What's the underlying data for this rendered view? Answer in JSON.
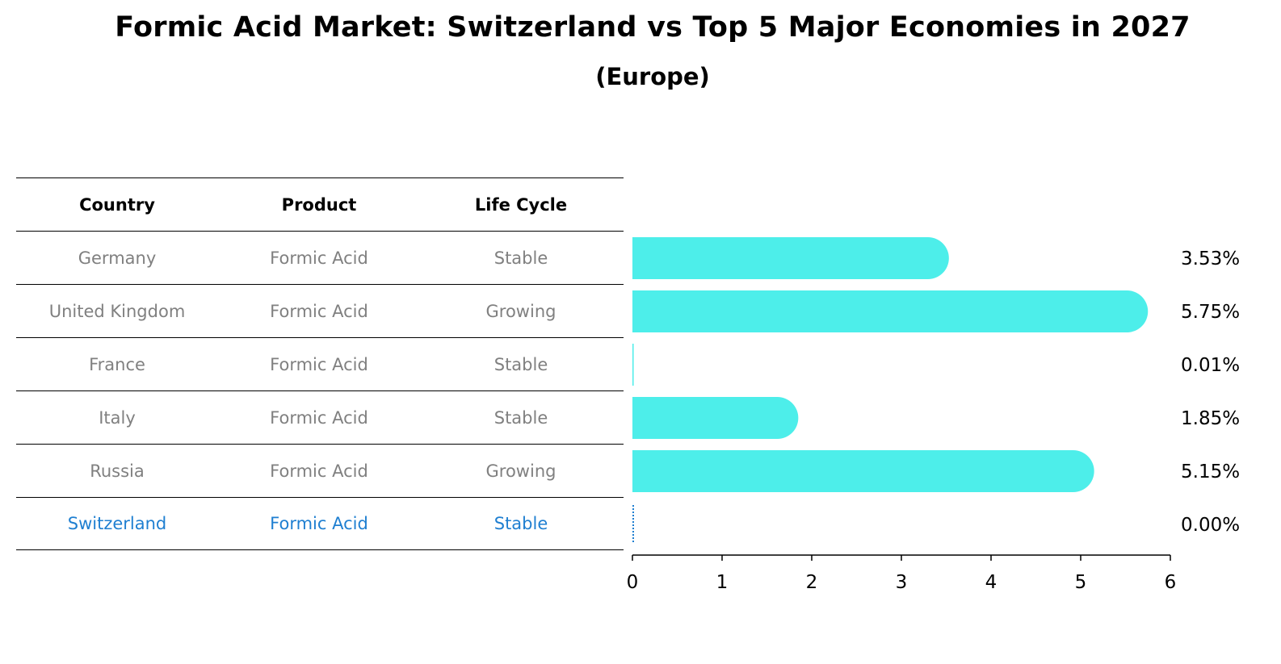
{
  "header": {
    "title": "Formic Acid Market: Switzerland vs Top 5 Major Economies in 2027",
    "subtitle": "(Europe)"
  },
  "table": {
    "columns": [
      "Country",
      "Product",
      "Life Cycle"
    ],
    "rows": [
      {
        "country": "Germany",
        "product": "Formic Acid",
        "life_cycle": "Stable"
      },
      {
        "country": "United Kingdom",
        "product": "Formic Acid",
        "life_cycle": "Growing"
      },
      {
        "country": "France",
        "product": "Formic Acid",
        "life_cycle": "Stable"
      },
      {
        "country": "Italy",
        "product": "Formic Acid",
        "life_cycle": "Stable"
      },
      {
        "country": "Russia",
        "product": "Formic Acid",
        "life_cycle": "Growing"
      },
      {
        "country": "Switzerland",
        "product": "Formic Acid",
        "life_cycle": "Stable"
      }
    ]
  },
  "colors": {
    "bar": "#4deeea",
    "highlight": "#1f7fd1",
    "row_text": "#808080"
  },
  "chart_data": {
    "type": "bar",
    "orientation": "horizontal",
    "categories": [
      "Germany",
      "United Kingdom",
      "France",
      "Italy",
      "Russia",
      "Switzerland"
    ],
    "values": [
      3.53,
      5.75,
      0.01,
      1.85,
      5.15,
      0.0
    ],
    "value_labels": [
      "3.53%",
      "5.75%",
      "0.01%",
      "1.85%",
      "5.15%",
      "0.00%"
    ],
    "xlim": [
      0,
      6
    ],
    "xticks": [
      "0",
      "1",
      "2",
      "3",
      "4",
      "5",
      "6"
    ],
    "grid": false,
    "title": "",
    "xlabel": "",
    "ylabel": ""
  }
}
